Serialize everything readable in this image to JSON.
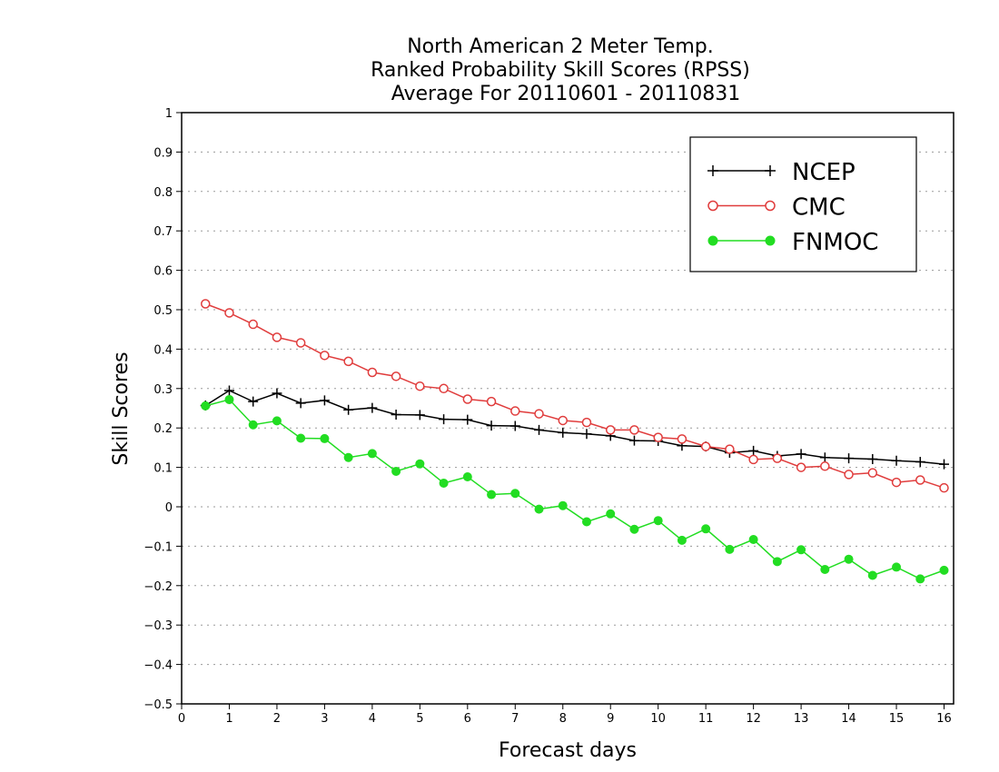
{
  "chart_data": {
    "type": "line",
    "title_lines": [
      "North American 2 Meter Temp.",
      "Ranked Probability Skill Scores (RPSS)",
      "Average For 20110601 - 20110831"
    ],
    "xlabel": "Forecast days",
    "ylabel": "Skill Scores",
    "xlim": [
      0,
      16.2
    ],
    "ylim": [
      -0.5,
      1
    ],
    "xticks": [
      0,
      1,
      2,
      3,
      4,
      5,
      6,
      7,
      8,
      9,
      10,
      11,
      12,
      13,
      14,
      15,
      16
    ],
    "yticks": [
      -0.5,
      -0.4,
      -0.3,
      -0.2,
      -0.1,
      0,
      0.1,
      0.2,
      0.3,
      0.4,
      0.5,
      0.6,
      0.7,
      0.8,
      0.9,
      1
    ],
    "ytick_labels": [
      "−0.5",
      "−0.4",
      "−0.3",
      "−0.2",
      "−0.1",
      "0",
      "0.1",
      "0.2",
      "0.3",
      "0.4",
      "0.5",
      "0.6",
      "0.7",
      "0.8",
      "0.9",
      "1"
    ],
    "grid": "dotted horizontal",
    "legend_position": "top-right",
    "x": [
      0.5,
      1,
      1.5,
      2,
      2.5,
      3,
      3.5,
      4,
      4.5,
      5,
      5.5,
      6,
      6.5,
      7,
      7.5,
      8,
      8.5,
      9,
      9.5,
      10,
      10.5,
      11,
      11.5,
      12,
      12.5,
      13,
      13.5,
      14,
      14.5,
      15,
      15.5,
      16
    ],
    "series": [
      {
        "name": "NCEP",
        "color": "#000000",
        "marker": "plus",
        "values": [
          0.257,
          0.295,
          0.267,
          0.288,
          0.263,
          0.27,
          0.246,
          0.251,
          0.234,
          0.233,
          0.222,
          0.221,
          0.206,
          0.205,
          0.195,
          0.188,
          0.185,
          0.18,
          0.168,
          0.167,
          0.155,
          0.153,
          0.137,
          0.142,
          0.129,
          0.134,
          0.125,
          0.123,
          0.121,
          0.117,
          0.114,
          0.108
        ]
      },
      {
        "name": "CMC",
        "color": "#e03c3c",
        "marker": "open-circle",
        "values": [
          0.515,
          0.492,
          0.463,
          0.43,
          0.416,
          0.384,
          0.369,
          0.341,
          0.331,
          0.306,
          0.3,
          0.273,
          0.267,
          0.243,
          0.236,
          0.219,
          0.214,
          0.195,
          0.195,
          0.176,
          0.172,
          0.153,
          0.146,
          0.12,
          0.123,
          0.1,
          0.103,
          0.082,
          0.086,
          0.062,
          0.068,
          0.048
        ]
      },
      {
        "name": "FNMOC",
        "color": "#22dd22",
        "marker": "filled-circle",
        "values": [
          0.256,
          0.272,
          0.208,
          0.218,
          0.174,
          0.173,
          0.125,
          0.135,
          0.09,
          0.109,
          0.06,
          0.076,
          0.031,
          0.034,
          -0.006,
          0.003,
          -0.038,
          -0.018,
          -0.057,
          -0.035,
          -0.085,
          -0.056,
          -0.108,
          -0.083,
          -0.139,
          -0.109,
          -0.159,
          -0.133,
          -0.174,
          -0.153,
          -0.183,
          -0.161
        ]
      }
    ]
  }
}
